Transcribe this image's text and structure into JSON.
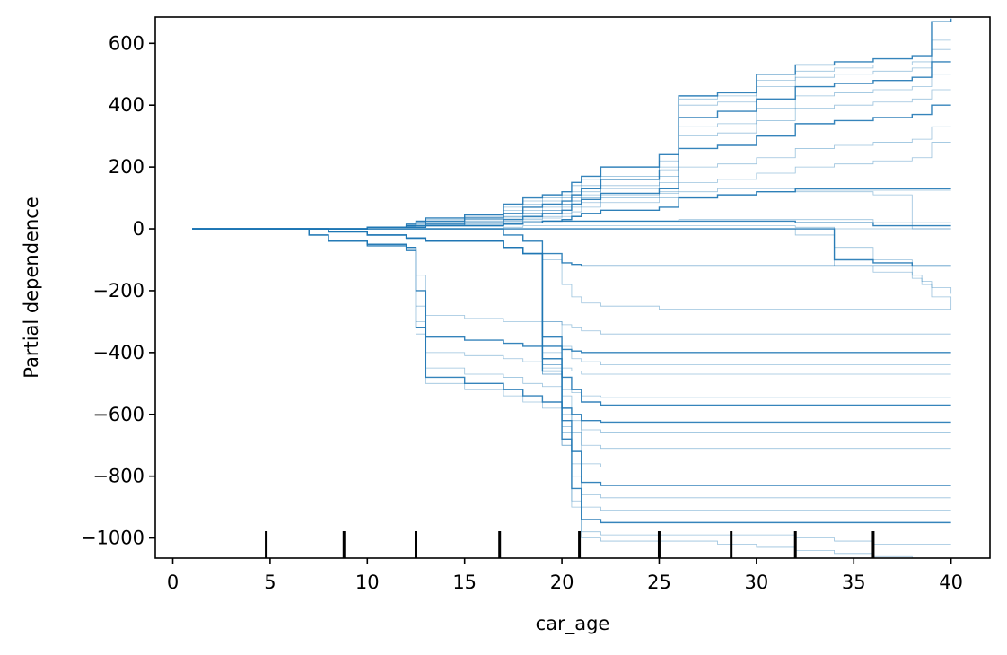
{
  "chart_data": {
    "type": "line",
    "title": "",
    "xlabel": "car_age",
    "ylabel": "Partial dependence",
    "xlim": [
      -0.9,
      42
    ],
    "ylim": [
      -1065,
      685
    ],
    "xticks": [
      0,
      5,
      10,
      15,
      20,
      25,
      30,
      35,
      40
    ],
    "yticks": [
      -1000,
      -800,
      -600,
      -400,
      -200,
      0,
      200,
      400,
      600
    ],
    "xtick_labels": [
      "0",
      "5",
      "10",
      "15",
      "20",
      "25",
      "30",
      "35",
      "40"
    ],
    "ytick_labels": [
      "−1000",
      "−800",
      "−600",
      "−400",
      "−200",
      "0",
      "200",
      "400",
      "600"
    ],
    "line_color": "#1f77b4",
    "grid": false,
    "deciles": [
      4.8,
      8.8,
      12.5,
      16.8,
      20.9,
      25.0,
      28.7,
      32.0,
      36.0
    ],
    "x": [
      1,
      5,
      7,
      8,
      10,
      12,
      12.5,
      13,
      15,
      17,
      18,
      19,
      20,
      20.5,
      21,
      22,
      25,
      26,
      28,
      30,
      32,
      34,
      36,
      38,
      38.5,
      39,
      40
    ],
    "series": [
      {
        "values": [
          0,
          0,
          0,
          0,
          5,
          15,
          25,
          35,
          45,
          80,
          100,
          110,
          120,
          150,
          170,
          200,
          240,
          430,
          440,
          500,
          530,
          540,
          550,
          560,
          560,
          670,
          680
        ]
      },
      {
        "values": [
          0,
          0,
          0,
          0,
          5,
          15,
          25,
          35,
          45,
          70,
          90,
          100,
          110,
          140,
          160,
          190,
          220,
          420,
          430,
          480,
          510,
          520,
          530,
          540,
          540,
          610,
          610
        ]
      },
      {
        "values": [
          0,
          0,
          0,
          0,
          5,
          15,
          20,
          30,
          40,
          60,
          80,
          90,
          100,
          120,
          140,
          170,
          200,
          400,
          410,
          460,
          490,
          500,
          510,
          520,
          520,
          580,
          580
        ]
      },
      {
        "values": [
          0,
          0,
          0,
          0,
          5,
          10,
          20,
          25,
          35,
          50,
          70,
          80,
          90,
          110,
          130,
          160,
          190,
          360,
          380,
          420,
          460,
          470,
          480,
          490,
          490,
          540,
          540
        ]
      },
      {
        "values": [
          0,
          0,
          0,
          0,
          5,
          10,
          15,
          20,
          30,
          40,
          60,
          70,
          80,
          100,
          120,
          140,
          170,
          330,
          340,
          390,
          430,
          440,
          450,
          460,
          460,
          500,
          500
        ]
      },
      {
        "values": [
          0,
          0,
          0,
          0,
          5,
          10,
          15,
          20,
          25,
          35,
          50,
          60,
          70,
          90,
          110,
          130,
          150,
          300,
          310,
          350,
          390,
          400,
          410,
          420,
          420,
          450,
          450
        ]
      },
      {
        "values": [
          0,
          0,
          0,
          0,
          5,
          10,
          10,
          15,
          20,
          30,
          40,
          50,
          60,
          80,
          95,
          115,
          130,
          260,
          270,
          300,
          340,
          350,
          360,
          370,
          370,
          400,
          400
        ]
      },
      {
        "values": [
          0,
          0,
          0,
          0,
          5,
          5,
          10,
          15,
          20,
          25,
          35,
          40,
          50,
          70,
          85,
          100,
          115,
          200,
          210,
          230,
          260,
          270,
          280,
          290,
          290,
          330,
          330
        ]
      },
      {
        "values": [
          0,
          0,
          0,
          0,
          5,
          5,
          10,
          10,
          15,
          20,
          30,
          35,
          40,
          55,
          70,
          85,
          100,
          150,
          160,
          180,
          200,
          210,
          220,
          230,
          230,
          280,
          280
        ]
      },
      {
        "values": [
          0,
          0,
          0,
          0,
          5,
          5,
          5,
          10,
          10,
          15,
          20,
          25,
          30,
          40,
          50,
          60,
          70,
          100,
          110,
          120,
          130,
          130,
          130,
          130,
          130,
          130,
          130
        ]
      },
      {
        "values": [
          0,
          0,
          0,
          0,
          5,
          5,
          5,
          10,
          10,
          15,
          20,
          25,
          30,
          40,
          50,
          60,
          70,
          100,
          110,
          120,
          125,
          125,
          125,
          125,
          125,
          125,
          125
        ]
      },
      {
        "values": [
          0,
          0,
          0,
          0,
          5,
          5,
          5,
          10,
          15,
          20,
          25,
          25,
          25,
          25,
          25,
          25,
          25,
          30,
          30,
          30,
          30,
          30,
          20,
          20,
          20,
          20,
          20
        ]
      },
      {
        "values": [
          0,
          0,
          0,
          0,
          5,
          5,
          5,
          10,
          10,
          15,
          20,
          25,
          25,
          25,
          25,
          25,
          25,
          25,
          25,
          25,
          20,
          20,
          10,
          10,
          10,
          10,
          10
        ]
      },
      {
        "values": [
          0,
          0,
          0,
          0,
          5,
          10,
          15,
          20,
          30,
          40,
          50,
          60,
          80,
          90,
          100,
          110,
          120,
          120,
          130,
          130,
          120,
          120,
          110,
          0,
          0,
          0,
          0
        ]
      },
      {
        "values": [
          0,
          0,
          0,
          0,
          0,
          0,
          0,
          0,
          0,
          5,
          10,
          10,
          10,
          10,
          10,
          10,
          10,
          10,
          10,
          10,
          5,
          0,
          0,
          0,
          0,
          0,
          0
        ]
      },
      {
        "values": [
          0,
          0,
          0,
          0,
          0,
          0,
          0,
          0,
          0,
          0,
          0,
          0,
          0,
          0,
          0,
          0,
          0,
          0,
          0,
          0,
          0,
          -100,
          -110,
          -120,
          -120,
          -120,
          -120
        ]
      },
      {
        "values": [
          0,
          0,
          0,
          0,
          0,
          0,
          0,
          0,
          0,
          0,
          0,
          0,
          0,
          0,
          0,
          0,
          0,
          0,
          0,
          0,
          0,
          -120,
          -140,
          -160,
          -170,
          -190,
          -210
        ]
      },
      {
        "values": [
          0,
          0,
          0,
          0,
          0,
          0,
          0,
          0,
          0,
          0,
          0,
          0,
          0,
          0,
          0,
          0,
          0,
          0,
          0,
          0,
          -20,
          -60,
          -100,
          -150,
          -180,
          -220,
          -260
        ]
      },
      {
        "values": [
          0,
          0,
          0,
          0,
          0,
          0,
          0,
          0,
          0,
          -20,
          -40,
          -80,
          -110,
          -115,
          -120,
          -120,
          -120,
          -120,
          -120,
          -120,
          -120,
          -120,
          -120,
          -120,
          -120,
          -120,
          -120
        ]
      },
      {
        "values": [
          0,
          0,
          0,
          0,
          0,
          0,
          0,
          0,
          0,
          -20,
          -40,
          -100,
          -180,
          -220,
          -240,
          -250,
          -260,
          -260,
          -260,
          -260,
          -260,
          -260,
          -260,
          -260,
          -260,
          -260,
          -260
        ]
      },
      {
        "values": [
          0,
          0,
          -20,
          -40,
          -50,
          -60,
          -150,
          -280,
          -290,
          -300,
          -300,
          -300,
          -310,
          -320,
          -330,
          -340,
          -340,
          -340,
          -340,
          -340,
          -340,
          -340,
          -340,
          -340,
          -340,
          -340,
          -340
        ]
      },
      {
        "values": [
          0,
          0,
          -20,
          -40,
          -50,
          -60,
          -200,
          -350,
          -360,
          -370,
          -380,
          -380,
          -390,
          -395,
          -400,
          -400,
          -400,
          -400,
          -400,
          -400,
          -400,
          -400,
          -400,
          -400,
          -400,
          -400,
          -400
        ]
      },
      {
        "values": [
          0,
          0,
          -20,
          -40,
          -50,
          -60,
          -250,
          -400,
          -410,
          -420,
          -430,
          -440,
          -450,
          -460,
          -470,
          -470,
          -470,
          -470,
          -470,
          -470,
          -470,
          -470,
          -470,
          -470,
          -470,
          -470,
          -470
        ]
      },
      {
        "values": [
          0,
          0,
          -20,
          -40,
          -50,
          -60,
          -300,
          -450,
          -470,
          -480,
          -500,
          -510,
          -520,
          -530,
          -540,
          -545,
          -545,
          -545,
          -545,
          -545,
          -545,
          -545,
          -545,
          -545,
          -545,
          -545,
          -545
        ]
      },
      {
        "values": [
          0,
          0,
          -20,
          -40,
          -55,
          -70,
          -320,
          -480,
          -500,
          -520,
          -540,
          -560,
          -580,
          -600,
          -620,
          -625,
          -625,
          -625,
          -625,
          -625,
          -625,
          -625,
          -625,
          -625,
          -625,
          -625,
          -625
        ]
      },
      {
        "values": [
          0,
          0,
          -20,
          -40,
          -55,
          -70,
          -340,
          -500,
          -520,
          -540,
          -560,
          -580,
          -600,
          -620,
          -650,
          -660,
          -660,
          -660,
          -660,
          -660,
          -660,
          -660,
          -660,
          -660,
          -660,
          -660,
          -660
        ]
      },
      {
        "values": [
          0,
          0,
          0,
          -10,
          -20,
          -30,
          -30,
          -40,
          -40,
          -60,
          -80,
          -300,
          -380,
          -420,
          -430,
          -440,
          -440,
          -440,
          -440,
          -440,
          -440,
          -440,
          -440,
          -440,
          -440,
          -440,
          -440
        ]
      },
      {
        "values": [
          0,
          0,
          0,
          -10,
          -20,
          -30,
          -30,
          -40,
          -40,
          -60,
          -80,
          -350,
          -480,
          -520,
          -560,
          -570,
          -570,
          -570,
          -570,
          -570,
          -570,
          -570,
          -570,
          -570,
          -570,
          -570,
          -570
        ]
      },
      {
        "values": [
          0,
          0,
          0,
          -10,
          -20,
          -30,
          -30,
          -40,
          -40,
          -60,
          -80,
          -380,
          -540,
          -600,
          -700,
          -710,
          -710,
          -710,
          -710,
          -710,
          -710,
          -710,
          -710,
          -710,
          -710,
          -710,
          -710
        ]
      },
      {
        "values": [
          0,
          0,
          0,
          -10,
          -20,
          -30,
          -30,
          -40,
          -40,
          -60,
          -80,
          -400,
          -580,
          -660,
          -760,
          -770,
          -770,
          -770,
          -770,
          -770,
          -770,
          -770,
          -770,
          -770,
          -770,
          -770,
          -770
        ]
      },
      {
        "values": [
          0,
          0,
          0,
          -10,
          -20,
          -30,
          -30,
          -40,
          -40,
          -60,
          -80,
          -420,
          -620,
          -720,
          -820,
          -830,
          -830,
          -830,
          -830,
          -830,
          -830,
          -830,
          -830,
          -830,
          -830,
          -830,
          -830
        ]
      },
      {
        "values": [
          0,
          0,
          0,
          -10,
          -20,
          -30,
          -30,
          -40,
          -40,
          -60,
          -80,
          -440,
          -640,
          -760,
          -860,
          -870,
          -870,
          -870,
          -870,
          -870,
          -870,
          -870,
          -870,
          -870,
          -870,
          -870,
          -870
        ]
      },
      {
        "values": [
          0,
          0,
          0,
          -10,
          -20,
          -30,
          -30,
          -40,
          -40,
          -60,
          -80,
          -450,
          -660,
          -800,
          -900,
          -910,
          -910,
          -910,
          -910,
          -910,
          -910,
          -910,
          -910,
          -910,
          -910,
          -910,
          -910
        ]
      },
      {
        "values": [
          0,
          0,
          0,
          -10,
          -20,
          -30,
          -30,
          -40,
          -40,
          -60,
          -80,
          -460,
          -680,
          -840,
          -940,
          -950,
          -950,
          -950,
          -950,
          -950,
          -950,
          -950,
          -950,
          -950,
          -950,
          -950,
          -950
        ]
      },
      {
        "values": [
          0,
          0,
          0,
          -10,
          -20,
          -30,
          -30,
          -40,
          -40,
          -60,
          -80,
          -470,
          -700,
          -880,
          -980,
          -990,
          -990,
          -990,
          -990,
          -990,
          -1000,
          -1010,
          -1020,
          -1020,
          -1020,
          -1020,
          -1020
        ]
      },
      {
        "values": [
          0,
          0,
          0,
          -10,
          -20,
          -30,
          -30,
          -40,
          -40,
          -60,
          -80,
          -470,
          -700,
          -900,
          -1000,
          -1010,
          -1010,
          -1010,
          -1020,
          -1030,
          -1040,
          -1050,
          -1060,
          -1065,
          -1065,
          -1065,
          -1065
        ]
      }
    ]
  }
}
